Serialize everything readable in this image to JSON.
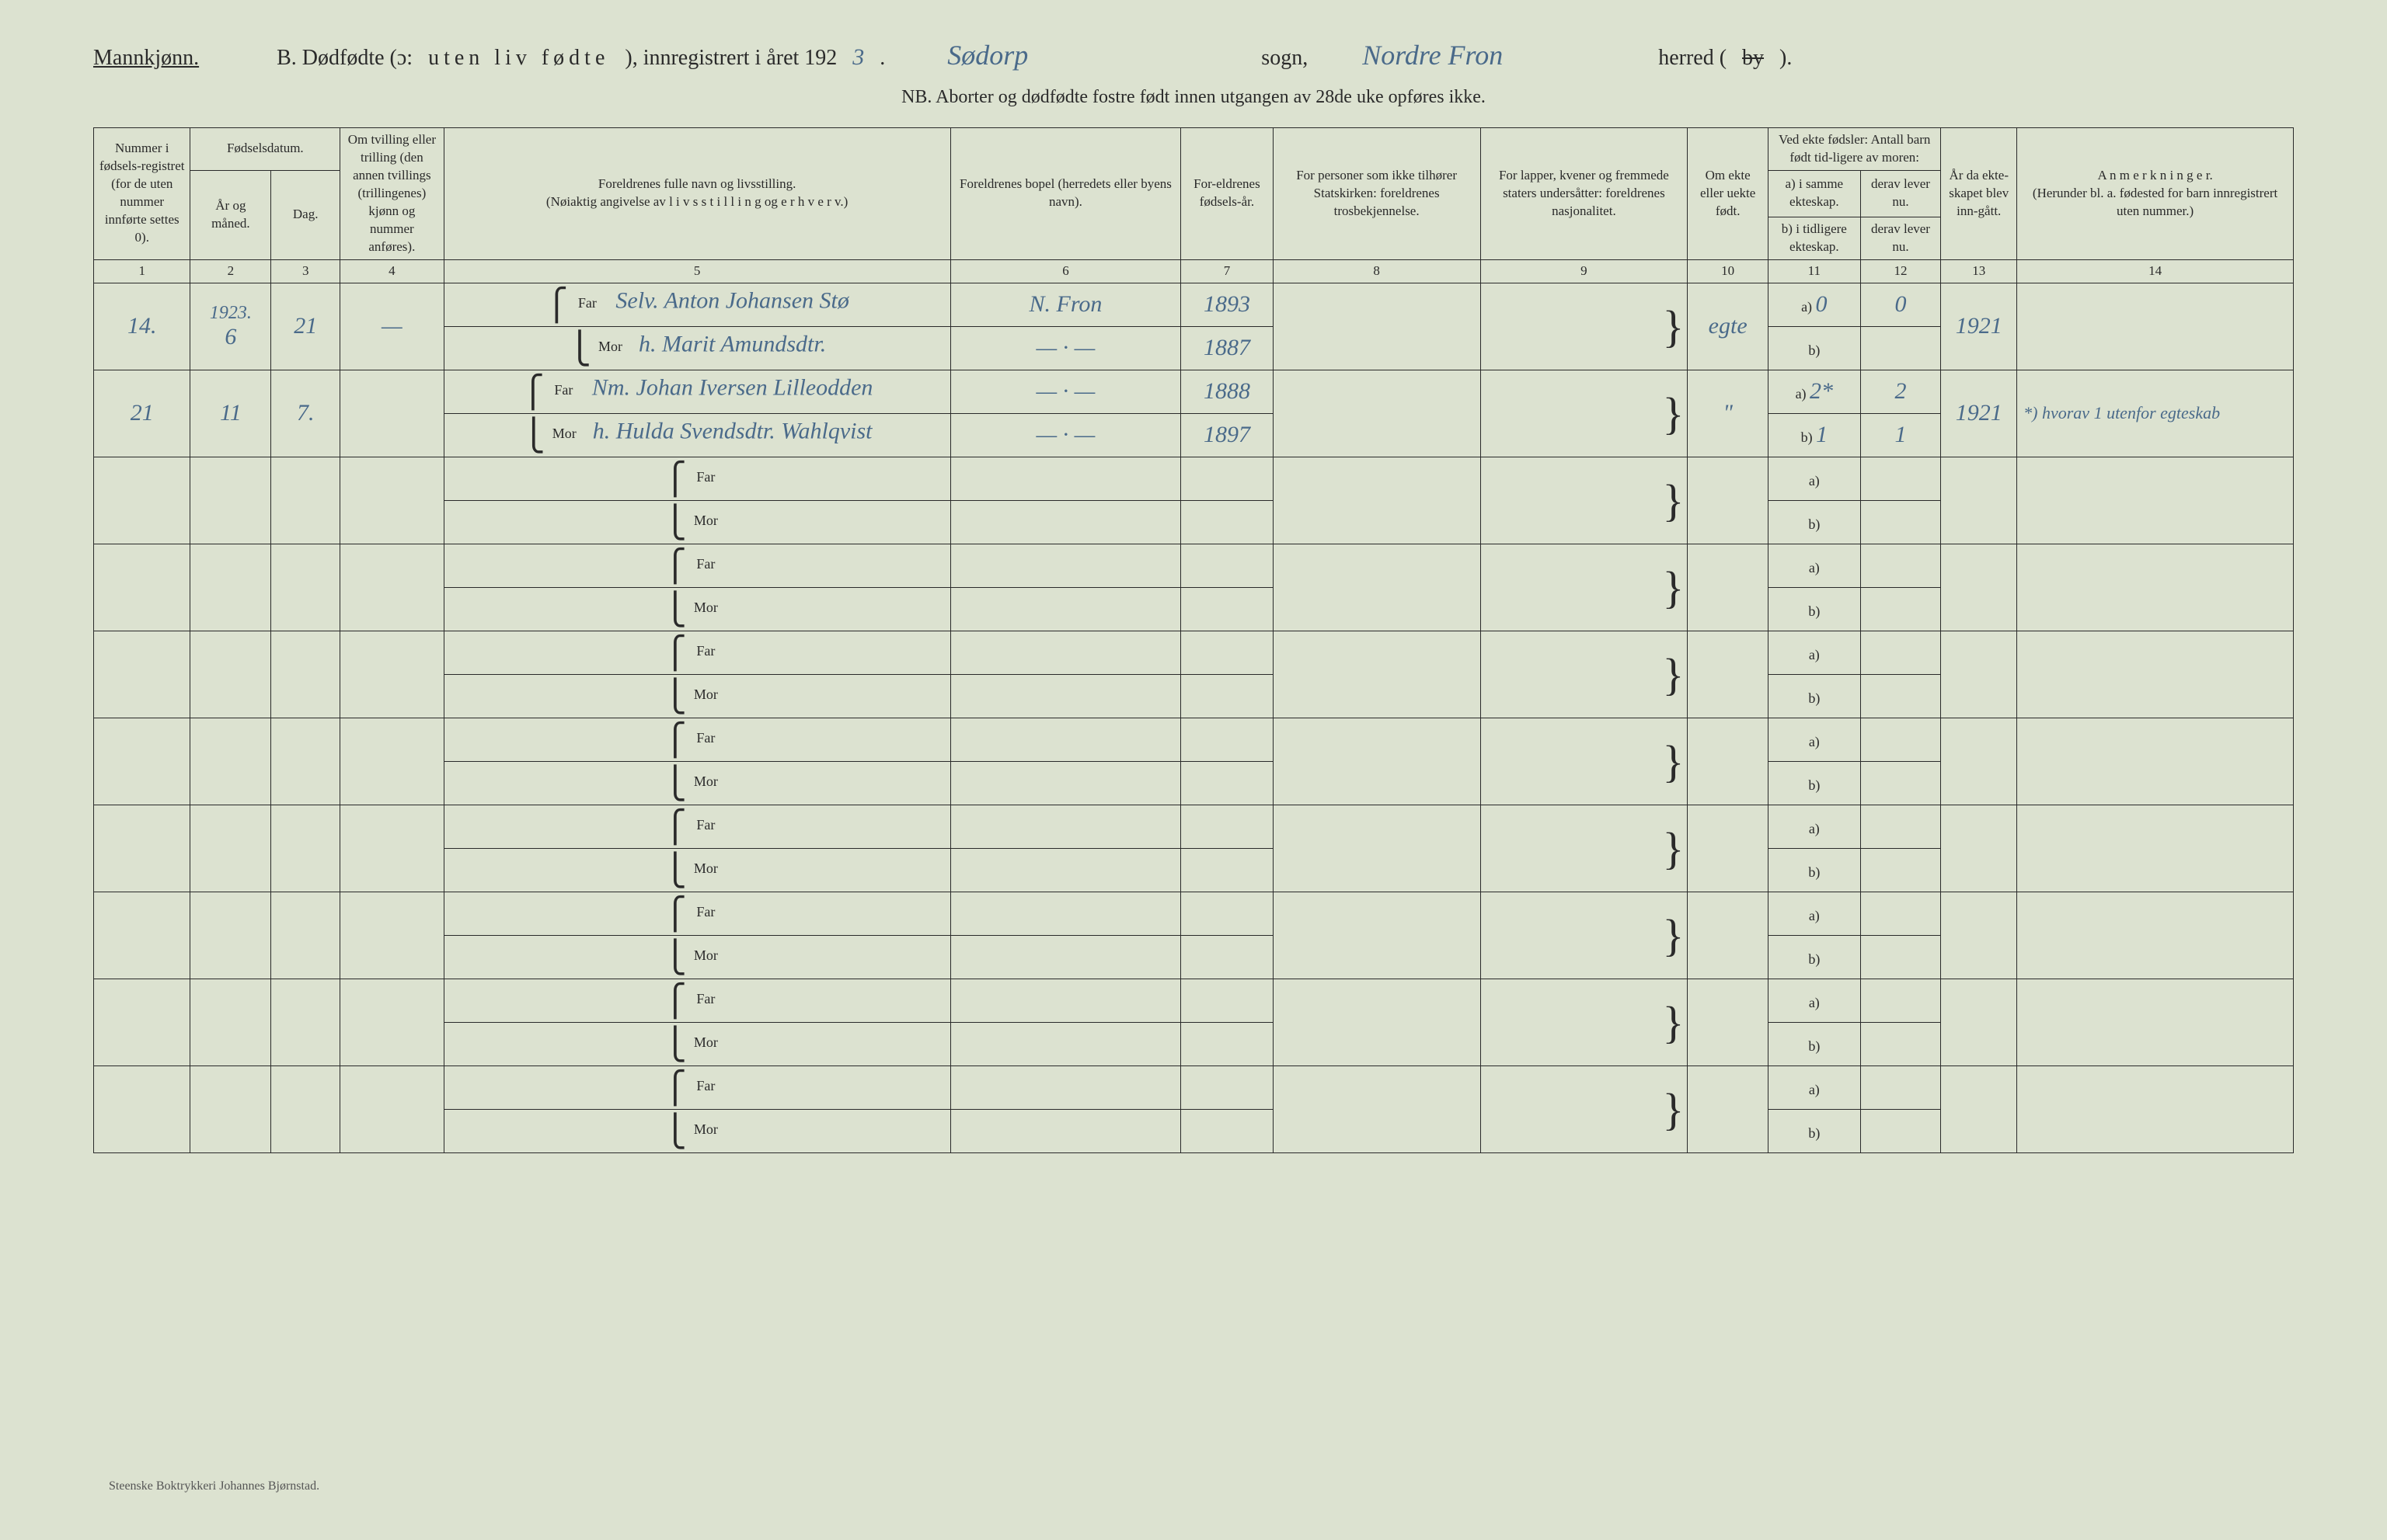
{
  "header": {
    "gender_label": "Mannkjønn.",
    "title_prefix": "B.  Dødfødte (ɔ:",
    "title_spaced": "uten liv fødte",
    "title_mid": "), innregistrert i året 192",
    "year_suffix_hand": "3",
    "sogn_hand": "Sødorp",
    "sogn_label": "sogn,",
    "herred_hand": "Nordre Fron",
    "herred_label": "herred (",
    "by_struck": "by",
    "herred_close": ").",
    "nb": "NB.  Aborter og dødfødte fostre født innen utgangen av 28de uke opføres ikke."
  },
  "columns": {
    "c1": "Nummer i fødsels-registret (for de uten nummer innførte settes 0).",
    "c2_top": "Fødselsdatum.",
    "c2a": "År og måned.",
    "c2b": "Dag.",
    "c4": "Om tvilling eller trilling (den annen tvillings (trillingenes) kjønn og nummer anføres).",
    "c5": "Foreldrenes fulle navn og livsstilling.\n(Nøiaktig angivelse av  l i v s s t i l l i n g  og  e r h v e r v.)",
    "c6": "Foreldrenes bopel (herredets eller byens navn).",
    "c7": "For-eldrenes fødsels-år.",
    "c8": "For personer som ikke tilhører Statskirken: foreldrenes trosbekjennelse.",
    "c9": "For lapper, kvener og fremmede staters undersåtter: foreldrenes nasjonalitet.",
    "c10": "Om ekte eller uekte født.",
    "c11_top": "Ved ekte fødsler: Antall barn født tid-ligere av moren:",
    "c11a": "a) i samme ekteskap.",
    "c11b": "b) i tidligere ekteskap.",
    "c12a": "derav lever nu.",
    "c12b": "derav lever nu.",
    "c13": "År da ekte-skapet blev inn-gått.",
    "c14": "A n m e r k n i n g e r.\n(Herunder bl. a. fødested for barn innregistrert uten nummer.)"
  },
  "colnums": [
    "1",
    "2",
    "3",
    "4",
    "5",
    "6",
    "7",
    "8",
    "9",
    "10",
    "11",
    "12",
    "13",
    "14"
  ],
  "labels": {
    "far": "Far",
    "mor": "Mor",
    "a": "a)",
    "b": "b)"
  },
  "rows": [
    {
      "num": "14.",
      "year_month_top": "1923.",
      "year_month": "6",
      "day": "21",
      "twin": "—",
      "far_name": "Selv. Anton Johansen Stø",
      "mor_name": "h. Marit Amundsdtr.",
      "far_bopel": "N. Fron",
      "mor_bopel": "— · —",
      "far_year": "1893",
      "mor_year": "1887",
      "ekte": "egte",
      "a_val": "0",
      "a_lever": "0",
      "b_val": "",
      "b_lever": "",
      "aar": "1921",
      "anm": ""
    },
    {
      "num": "21",
      "year_month": "11",
      "day": "7.",
      "twin": "",
      "far_name": "Nm. Johan Iversen Lilleodden",
      "mor_name": "h. Hulda Svendsdtr. Wahlqvist",
      "far_bopel": "— · —",
      "mor_bopel": "— · —",
      "far_year": "1888",
      "mor_year": "1897",
      "ekte": "\"",
      "a_val": "2*",
      "a_lever": "2",
      "b_val": "1",
      "b_lever": "1",
      "aar": "1921",
      "anm": "*) hvorav 1 utenfor egteskab"
    }
  ],
  "empty_rows": 8,
  "footer": "Steenske Boktrykkeri Johannes Bjørnstad."
}
